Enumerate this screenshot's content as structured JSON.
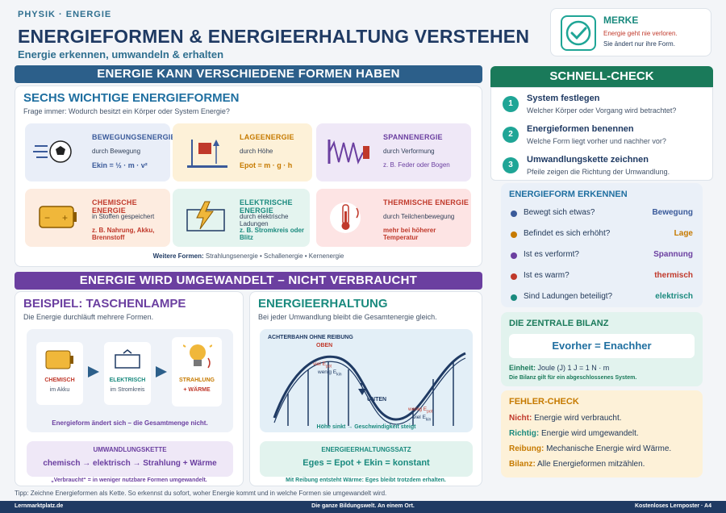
{
  "header": {
    "topline": "PHYSIK · ENERGIE",
    "title": "ENERGIEFORMEN & ENERGIEERHALTUNG VERSTEHEN",
    "subtitle": "Energie erkennen, umwandeln & erhalten"
  },
  "merke": {
    "title": "MERKE",
    "line1": "Energie geht nie verloren.",
    "line2": "Sie ändert nur ihre Form."
  },
  "banner1": "ENERGIE KANN VERSCHIEDENE FORMEN HABEN",
  "banner2": "ENERGIE WIRD UMGEWANDELT – NICHT VERBRAUCHT",
  "six": {
    "title": "SECHS WICHTIGE ENERGIEFORMEN",
    "question": "Frage immer: Wodurch besitzt ein Körper oder System Energie?",
    "tiles": [
      {
        "title": "BEWEGUNGSENERGIE",
        "desc": "durch Bewegung",
        "formula": "Ekin = ½ · m · v²",
        "color": "#3a5a9a"
      },
      {
        "title": "LAGEENERGIE",
        "desc": "durch Höhe",
        "formula": "Epot = m · g · h",
        "color": "#c67a00"
      },
      {
        "title": "SPANNENERGIE",
        "desc": "durch Verformung",
        "formula": "z. B. Feder oder Bogen",
        "color": "#6b3fa0"
      },
      {
        "title": "CHEMISCHE ENERGIE",
        "desc": "in Stoffen gespeichert",
        "formula": "z. B. Nahrung, Akku, Brennstoff",
        "color": "#c0392b"
      },
      {
        "title": "ELEKTRISCHE ENERGIE",
        "desc": "durch elektrische Ladungen",
        "formula": "z. B. Stromkreis oder Blitz",
        "color": "#1a8a7e"
      },
      {
        "title": "THERMISCHE ENERGIE",
        "desc": "durch Teilchenbewegung",
        "formula": "mehr bei höherer Temperatur",
        "color": "#c0392b"
      }
    ],
    "further_label": "Weitere Formen:",
    "further": "Strahlungsenergie • Schallenergie • Kernenergie"
  },
  "lamp": {
    "title": "BEISPIEL: TASCHENLAMPE",
    "desc": "Die Energie durchläuft mehrere Formen.",
    "steps": [
      {
        "l1": "CHEMISCH",
        "l2": "im Akku"
      },
      {
        "l1": "ELEKTRISCH",
        "l2": "im Stromkreis"
      },
      {
        "l1": "STRAHLUNG",
        "l2": "+ WÄRME"
      }
    ],
    "note": "Energieform ändert sich – die Gesamtmenge nicht.",
    "chain_title": "UMWANDLUNGSKETTE",
    "chain": "chemisch → elektrisch → Strahlung + Wärme",
    "footnote": "„Verbraucht“ = in weniger nutzbare Formen umgewandelt."
  },
  "erhalt": {
    "title": "ENERGIEERHALTUNG",
    "desc": "Bei jeder Umwandlung bleibt die Gesamtenergie gleich.",
    "coaster": "ACHTERBAHN OHNE REIBUNG",
    "oben": "OBEN",
    "unten": "UNTEN",
    "viel": "viel",
    "wenig": "wenig",
    "epot": "E",
    "kin": "E",
    "caption": "Höhe sinkt → Geschwindigkeit steigt",
    "satz_title": "ENERGIEERHALTUNGSSATZ",
    "satz": "Eges = Epot + Ekin = konstant",
    "footnote": "Mit Reibung entsteht Wärme: Eges bleibt trotzdem erhalten."
  },
  "tip": "Tipp: Zeichne Energieformen als Kette. So erkennst du sofort, woher Energie kommt und in welche Formen sie umgewandelt wird.",
  "check": {
    "title": "SCHNELL-CHECK",
    "steps": [
      {
        "n": "1",
        "t": "System festlegen",
        "d": "Welcher Körper oder Vorgang wird betrachtet?"
      },
      {
        "n": "2",
        "t": "Energieformen benennen",
        "d": "Welche Form liegt vorher und nachher vor?"
      },
      {
        "n": "3",
        "t": "Umwandlungskette zeichnen",
        "d": "Pfeile zeigen die Richtung der Umwandlung."
      }
    ]
  },
  "erkennen": {
    "title": "ENERGIEFORM ERKENNEN",
    "rows": [
      {
        "q": "Bewegt sich etwas?",
        "a": "Bewegung",
        "color": "#3a5a9a"
      },
      {
        "q": "Befindet es sich erhöht?",
        "a": "Lage",
        "color": "#c67a00"
      },
      {
        "q": "Ist es verformt?",
        "a": "Spannung",
        "color": "#6b3fa0"
      },
      {
        "q": "Ist es warm?",
        "a": "thermisch",
        "color": "#c0392b"
      },
      {
        "q": "Sind Ladungen beteiligt?",
        "a": "elektrisch",
        "color": "#1a8a7e"
      }
    ]
  },
  "bilanz": {
    "title": "DIE ZENTRALE BILANZ",
    "formula": "Evorher = Enachher",
    "unit_label": "Einheit:",
    "unit": "Joule (J)  1 J = 1 N · m",
    "note": "Die Bilanz gilt für ein abgeschlossenes System."
  },
  "fehler": {
    "title": "FEHLER-CHECK",
    "rows": [
      {
        "k": "Nicht:",
        "v": "Energie wird verbraucht.",
        "color": "#c0392b"
      },
      {
        "k": "Richtig:",
        "v": "Energie wird umgewandelt.",
        "color": "#1a8a7e"
      },
      {
        "k": "Reibung:",
        "v": "Mechanische Energie wird Wärme.",
        "color": "#c67a00"
      },
      {
        "k": "Bilanz:",
        "v": "Alle Energieformen mitzählen.",
        "color": "#c67a00"
      }
    ]
  },
  "footer": {
    "left": "Lernmarktplatz.de",
    "center": "Die ganze Bildungswelt. An einem Ort.",
    "right": "Kostenloses Lernposter · A4"
  }
}
